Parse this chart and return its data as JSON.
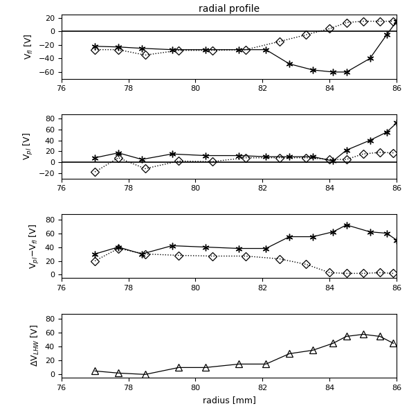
{
  "title": "radial profile",
  "xlabel": "radius [mm]",
  "xlim": [
    76,
    86
  ],
  "xticks": [
    76,
    78,
    80,
    82,
    84,
    86
  ],
  "panel1_ylabel": "V$_{fl}$ [V]",
  "panel1_ylim": [
    -70,
    25
  ],
  "panel1_yticks": [
    -60,
    -40,
    -20,
    0,
    20
  ],
  "panel1_hline": 0,
  "panel1_star_x": [
    77.0,
    77.7,
    78.4,
    79.3,
    80.3,
    81.3,
    82.1,
    82.8,
    83.5,
    84.1,
    84.5,
    85.2,
    85.7,
    86.0
  ],
  "panel1_star_y": [
    -22,
    -23,
    -25,
    -27,
    -27,
    -27,
    -27,
    -48,
    -57,
    -60,
    -60,
    -40,
    -5,
    15
  ],
  "panel1_diamond_x": [
    77.0,
    77.7,
    78.5,
    79.5,
    80.5,
    81.5,
    82.5,
    83.3,
    84.0,
    84.5,
    85.0,
    85.5,
    85.9
  ],
  "panel1_diamond_y": [
    -27,
    -27,
    -35,
    -28,
    -28,
    -27,
    -15,
    -5,
    4,
    13,
    15,
    15,
    15
  ],
  "panel2_ylabel": "V$_{pl}$ [V]",
  "panel2_ylim": [
    -30,
    88
  ],
  "panel2_yticks": [
    -20,
    0,
    20,
    40,
    60,
    80
  ],
  "panel2_hline": 0,
  "panel2_star_x": [
    77.0,
    77.7,
    78.4,
    79.3,
    80.3,
    81.3,
    82.1,
    82.8,
    83.5,
    84.1,
    84.5,
    85.2,
    85.7,
    86.0
  ],
  "panel2_star_y": [
    8,
    17,
    5,
    15,
    12,
    12,
    10,
    10,
    10,
    2,
    22,
    40,
    55,
    72
  ],
  "panel2_diamond_x": [
    77.0,
    77.7,
    78.5,
    79.5,
    80.5,
    81.5,
    82.5,
    83.3,
    84.0,
    84.5,
    85.0,
    85.5,
    85.9
  ],
  "panel2_diamond_y": [
    -18,
    8,
    -12,
    2,
    1,
    8,
    8,
    8,
    5,
    5,
    15,
    18,
    17
  ],
  "panel3_ylabel": "V$_{pl}$$-$V$_{fl}$ [V]",
  "panel3_ylim": [
    -5,
    88
  ],
  "panel3_yticks": [
    0,
    20,
    40,
    60,
    80
  ],
  "panel3_star_x": [
    77.0,
    77.7,
    78.4,
    79.3,
    80.3,
    81.3,
    82.1,
    82.8,
    83.5,
    84.1,
    84.5,
    85.2,
    85.7,
    86.0
  ],
  "panel3_star_y": [
    30,
    40,
    30,
    42,
    40,
    38,
    38,
    55,
    55,
    62,
    72,
    62,
    60,
    50
  ],
  "panel3_diamond_x": [
    77.0,
    77.7,
    78.5,
    79.5,
    80.5,
    81.5,
    82.5,
    83.3,
    84.0,
    84.5,
    85.0,
    85.5,
    85.9
  ],
  "panel3_diamond_y": [
    20,
    38,
    30,
    28,
    27,
    27,
    23,
    15,
    3,
    2,
    2,
    3,
    2
  ],
  "panel4_ylabel": "$\\Delta$V$_{LHW}$ [V]",
  "panel4_ylim": [
    -5,
    88
  ],
  "panel4_yticks": [
    0,
    20,
    40,
    60,
    80
  ],
  "panel4_tri_x": [
    77.0,
    77.7,
    78.5,
    79.5,
    80.3,
    81.3,
    82.1,
    82.8,
    83.5,
    84.1,
    84.5,
    85.0,
    85.5,
    85.9
  ],
  "panel4_tri_y": [
    5,
    2,
    0,
    10,
    10,
    15,
    15,
    30,
    35,
    45,
    55,
    58,
    55,
    45
  ]
}
